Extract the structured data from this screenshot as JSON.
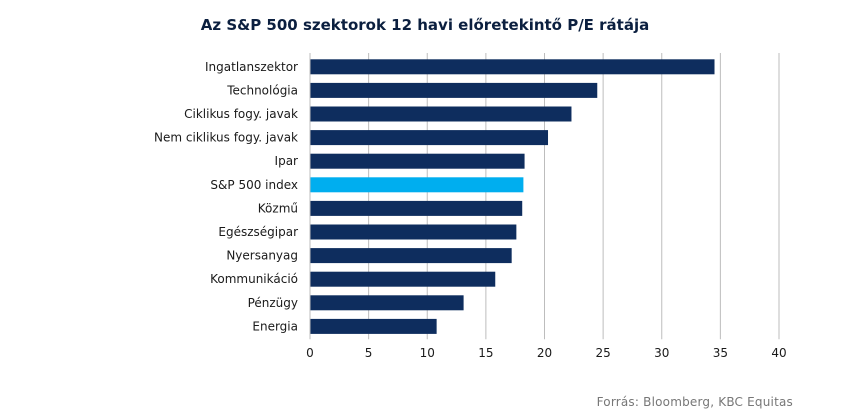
{
  "chart_data": {
    "type": "bar",
    "orientation": "horizontal",
    "title": "Az S&P 500 szektorok 12 havi előretekintő P/E rátája",
    "categories": [
      "Ingatlanszektor",
      "Technológia",
      "Ciklikus fogy. javak",
      "Nem ciklikus fogy. javak",
      "Ipar",
      "S&P 500 index",
      "Közmű",
      "Egészségipar",
      "Nyersanyag",
      "Kommunikáció",
      "Pénzügy",
      "Energia"
    ],
    "values": [
      34.5,
      24.5,
      22.3,
      20.3,
      18.3,
      18.2,
      18.1,
      17.6,
      17.2,
      15.8,
      13.1,
      10.8
    ],
    "highlight": "S&P 500 index",
    "colors": {
      "bar": "#0e2d5e",
      "highlight": "#00aeef",
      "grid": "#bdbdbd"
    },
    "xlim": [
      0,
      40
    ],
    "xticks": [
      0,
      5,
      10,
      15,
      20,
      25,
      30,
      35,
      40
    ],
    "xlabel": "",
    "ylabel": "",
    "grid": "vertical",
    "source": "Forrás: Bloomberg, KBC Equitas"
  }
}
